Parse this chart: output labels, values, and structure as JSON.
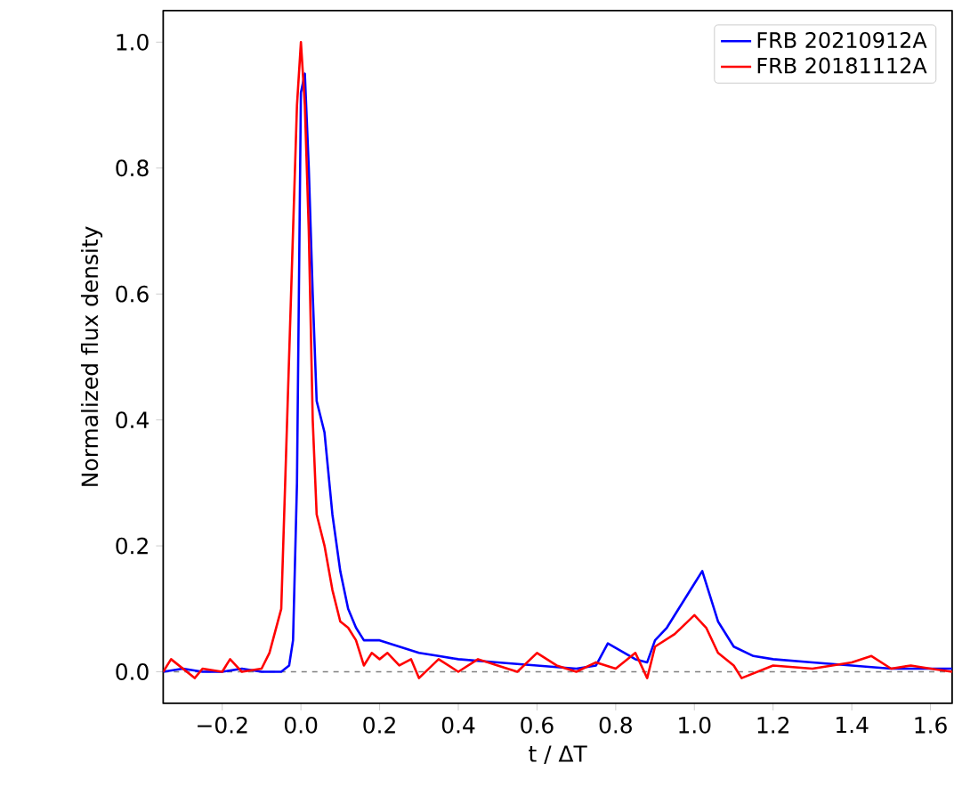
{
  "chart_data": {
    "type": "line",
    "xlabel": "t / ΔT",
    "ylabel": "Normalized flux density",
    "xlim": [
      -0.35,
      1.655
    ],
    "ylim": [
      -0.05,
      1.05
    ],
    "xticks": [
      {
        "value": -0.2,
        "label": "−0.2"
      },
      {
        "value": 0,
        "label": "0.0"
      },
      {
        "value": 0.2,
        "label": "0.2"
      },
      {
        "value": 0.4,
        "label": "0.4"
      },
      {
        "value": 0.6,
        "label": "0.6"
      },
      {
        "value": 0.8,
        "label": "0.8"
      },
      {
        "value": 1.0,
        "label": "1.0"
      },
      {
        "value": 1.2,
        "label": "1.2"
      },
      {
        "value": 1.4,
        "label": "1.4"
      },
      {
        "value": 1.6,
        "label": "1.6"
      }
    ],
    "yticks": [
      {
        "value": 0,
        "label": "0.0"
      },
      {
        "value": 0.2,
        "label": "0.2"
      },
      {
        "value": 0.4,
        "label": "0.4"
      },
      {
        "value": 0.6,
        "label": "0.6"
      },
      {
        "value": 0.8,
        "label": "0.8"
      },
      {
        "value": 1.0,
        "label": "1.0"
      }
    ],
    "legend": "top right",
    "grid": false,
    "marker": "none",
    "line_style": "solid",
    "ref_lines": [
      {
        "axis": "y",
        "value": 0,
        "color": "#808080",
        "line_style": "dashed"
      }
    ],
    "series": [
      {
        "name": "FRB 20210912A",
        "color": "#0000ff",
        "x": [
          -0.35,
          -0.3,
          -0.25,
          -0.2,
          -0.15,
          -0.1,
          -0.05,
          -0.03,
          -0.02,
          -0.01,
          0.0,
          0.01,
          0.02,
          0.03,
          0.04,
          0.06,
          0.08,
          0.1,
          0.12,
          0.14,
          0.16,
          0.2,
          0.25,
          0.3,
          0.35,
          0.4,
          0.5,
          0.6,
          0.7,
          0.75,
          0.78,
          0.85,
          0.88,
          0.9,
          0.93,
          0.96,
          1.0,
          1.02,
          1.04,
          1.06,
          1.1,
          1.15,
          1.2,
          1.3,
          1.4,
          1.5,
          1.6,
          1.655
        ],
        "values": [
          0.0,
          0.005,
          0.0,
          0.0,
          0.005,
          0.0,
          0.0,
          0.01,
          0.05,
          0.3,
          0.92,
          0.95,
          0.8,
          0.6,
          0.43,
          0.38,
          0.25,
          0.16,
          0.1,
          0.07,
          0.05,
          0.05,
          0.04,
          0.03,
          0.025,
          0.02,
          0.015,
          0.01,
          0.005,
          0.01,
          0.045,
          0.02,
          0.015,
          0.05,
          0.07,
          0.1,
          0.14,
          0.16,
          0.12,
          0.08,
          0.04,
          0.025,
          0.02,
          0.015,
          0.01,
          0.005,
          0.005,
          0.005
        ]
      },
      {
        "name": "FRB 20181112A",
        "color": "#ff0000",
        "x": [
          -0.35,
          -0.33,
          -0.3,
          -0.27,
          -0.25,
          -0.2,
          -0.18,
          -0.15,
          -0.1,
          -0.08,
          -0.05,
          -0.03,
          -0.01,
          0.0,
          0.01,
          0.02,
          0.03,
          0.04,
          0.06,
          0.08,
          0.1,
          0.12,
          0.14,
          0.16,
          0.18,
          0.2,
          0.22,
          0.25,
          0.28,
          0.3,
          0.35,
          0.4,
          0.45,
          0.5,
          0.55,
          0.6,
          0.65,
          0.7,
          0.75,
          0.8,
          0.85,
          0.88,
          0.9,
          0.95,
          1.0,
          1.03,
          1.06,
          1.1,
          1.12,
          1.2,
          1.3,
          1.4,
          1.45,
          1.5,
          1.55,
          1.6,
          1.655
        ],
        "values": [
          0.0,
          0.02,
          0.005,
          -0.01,
          0.005,
          0.0,
          0.02,
          0.0,
          0.005,
          0.03,
          0.1,
          0.5,
          0.9,
          1.0,
          0.9,
          0.7,
          0.4,
          0.25,
          0.2,
          0.13,
          0.08,
          0.07,
          0.05,
          0.01,
          0.03,
          0.02,
          0.03,
          0.01,
          0.02,
          -0.01,
          0.02,
          0.0,
          0.02,
          0.01,
          0.0,
          0.03,
          0.01,
          0.0,
          0.015,
          0.005,
          0.03,
          -0.01,
          0.04,
          0.06,
          0.09,
          0.07,
          0.03,
          0.01,
          -0.01,
          0.01,
          0.005,
          0.015,
          0.025,
          0.005,
          0.01,
          0.005,
          0.0
        ]
      }
    ]
  }
}
